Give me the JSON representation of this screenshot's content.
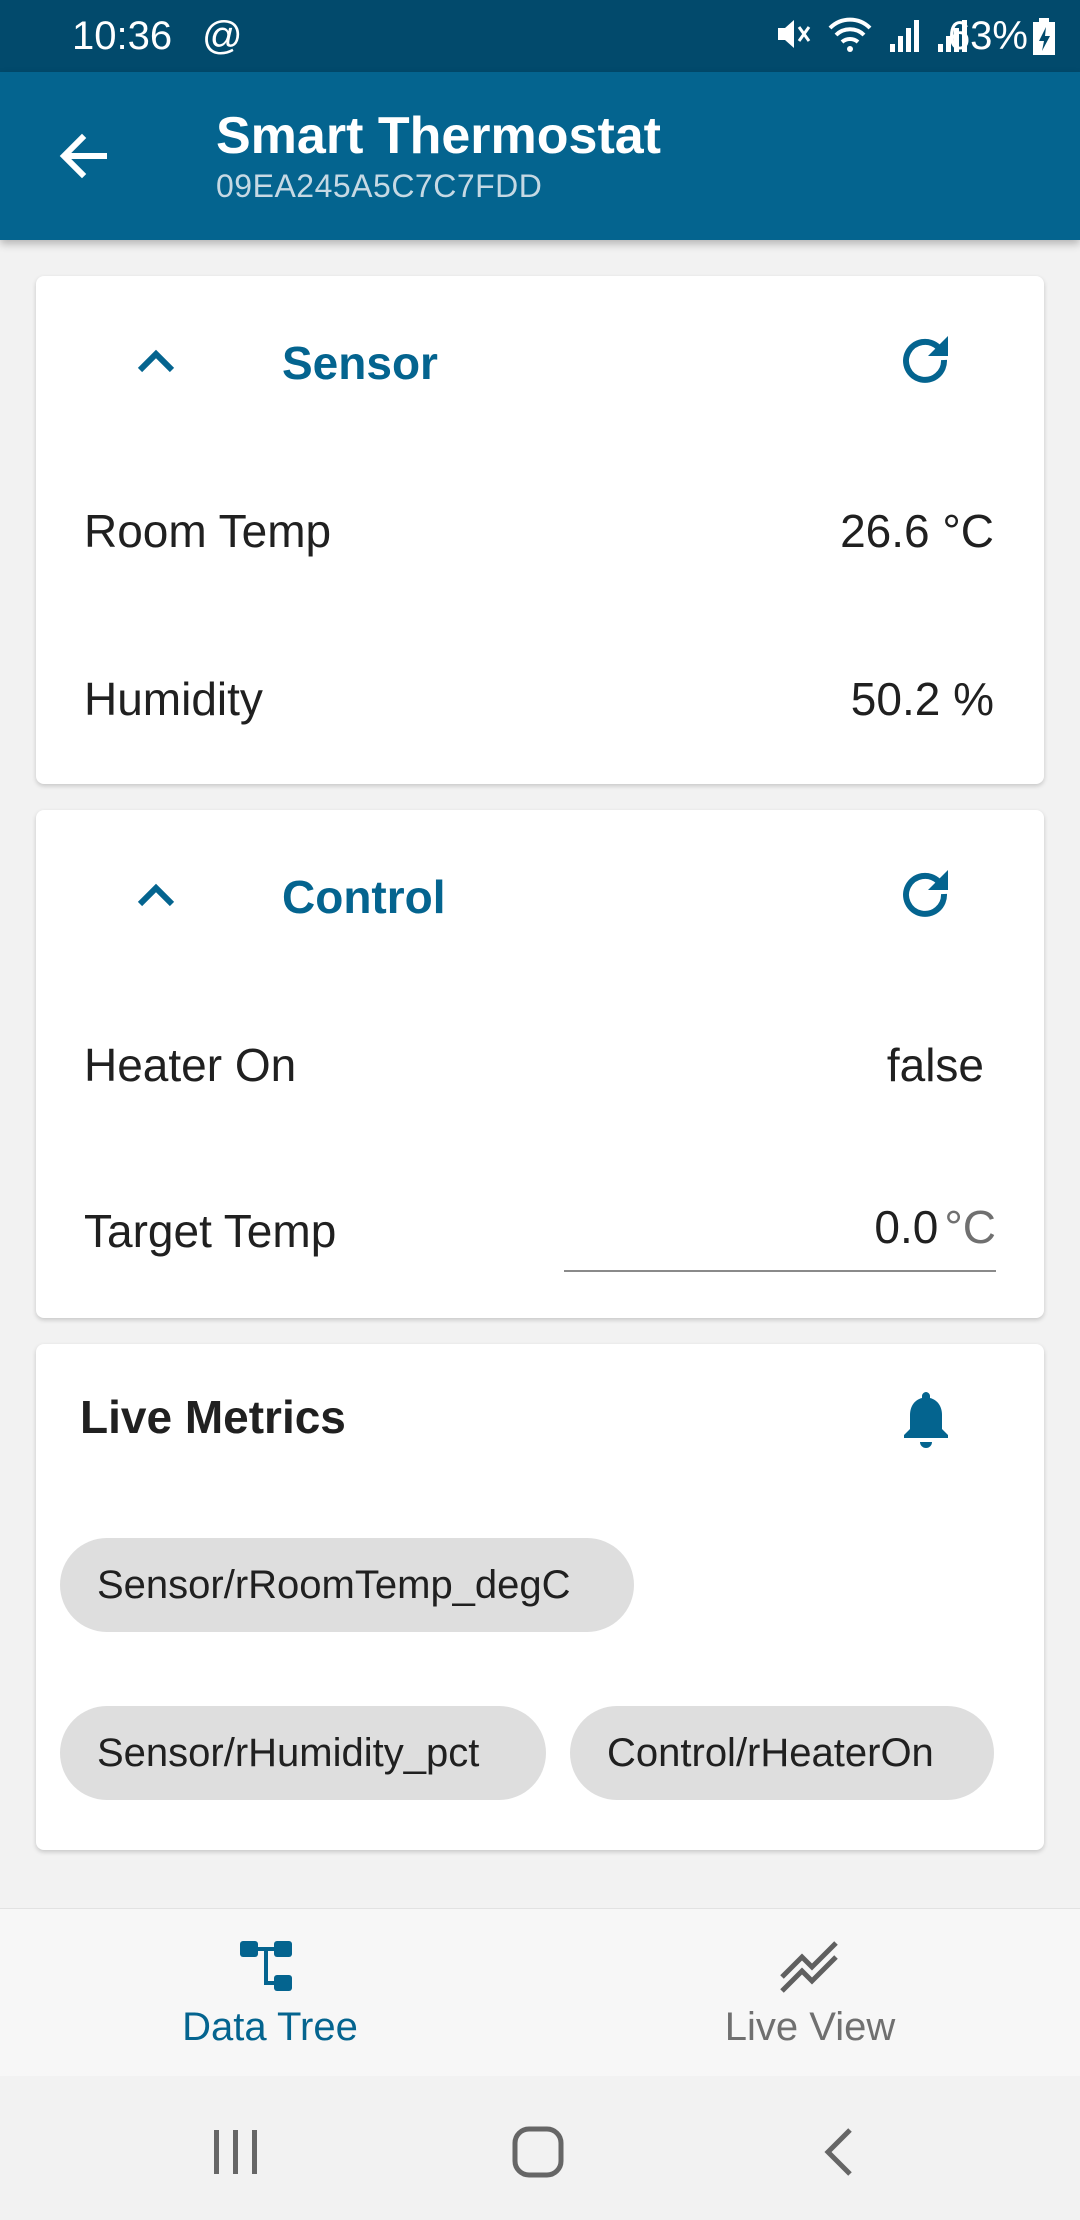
{
  "status_bar": {
    "time": "10:36",
    "at_symbol": "@",
    "battery_percent": "63%",
    "icons": [
      "mute-icon",
      "wifi-icon",
      "signal-icon",
      "signal-icon",
      "battery-charging-icon"
    ]
  },
  "app_bar": {
    "title": "Smart Thermostat",
    "subtitle": "09EA245A5C7C7FDD",
    "back_icon": "arrow-back-icon"
  },
  "sensor_card": {
    "title": "Sensor",
    "rows": [
      {
        "label": "Room Temp",
        "value": "26.6 °C"
      },
      {
        "label": "Humidity",
        "value": "50.2 %"
      }
    ]
  },
  "control_card": {
    "title": "Control",
    "heater": {
      "label": "Heater On",
      "value": "false"
    },
    "target": {
      "label": "Target Temp",
      "value": "0.0",
      "unit": "°C"
    }
  },
  "live_metrics": {
    "title": "Live Metrics",
    "chips": [
      "Sensor/rRoomTemp_degC",
      "Sensor/rHumidity_pct",
      "Control/rHeaterOn"
    ]
  },
  "bottom_nav": {
    "items": [
      {
        "label": "Data Tree",
        "icon": "tree-icon",
        "active": true
      },
      {
        "label": "Live View",
        "icon": "chart-line-icon",
        "active": false
      }
    ]
  },
  "colors": {
    "status_bar": "#024a6c",
    "app_bar": "#04648f",
    "accent": "#04648f",
    "chip": "#dedede",
    "background": "#f2f2f2"
  }
}
